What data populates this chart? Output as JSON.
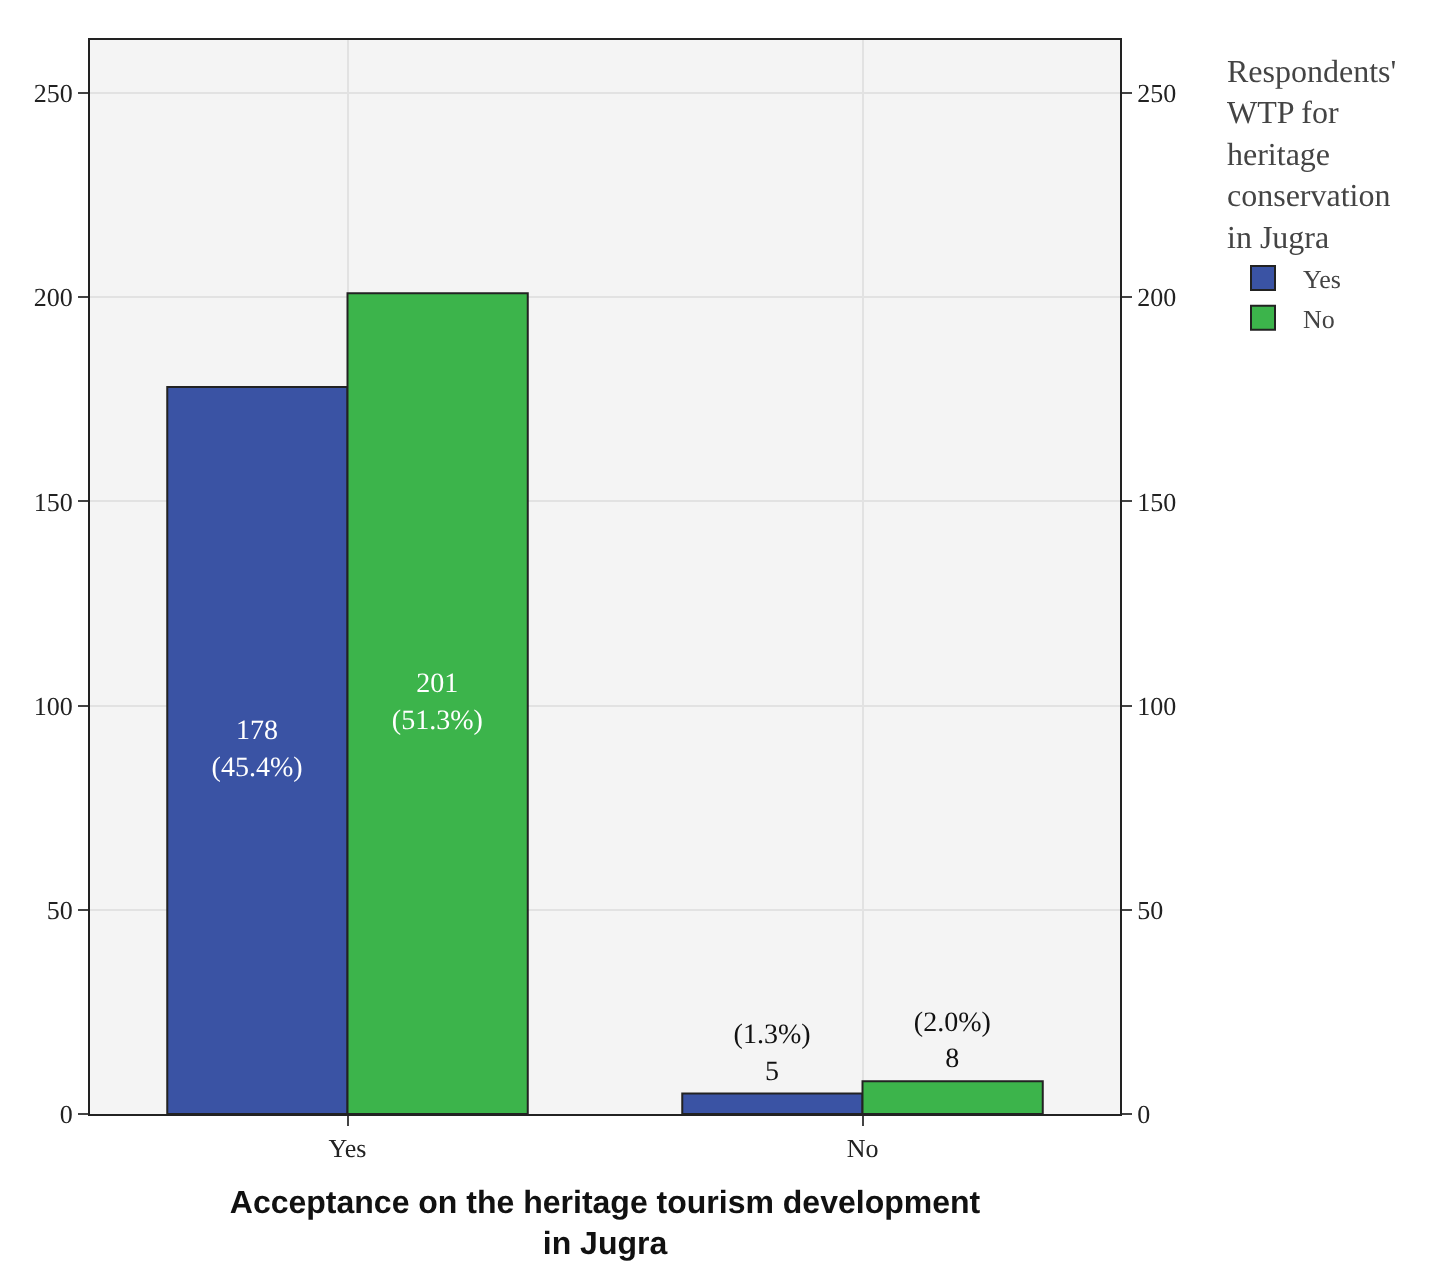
{
  "chart_data": {
    "type": "bar",
    "xlabel": "Acceptance on the heritage tourism development in Jugra",
    "legend_title": "Respondents' WTP for heritage conservation in Jugra",
    "categories": [
      "Yes",
      "No"
    ],
    "series": [
      {
        "name": "Yes",
        "color": "#3a53a4",
        "values": [
          178,
          5
        ],
        "value_labels": [
          "178\n(45.4%)",
          "(1.3%)\n5"
        ]
      },
      {
        "name": "No",
        "color": "#3cb44b",
        "values": [
          201,
          8
        ],
        "value_labels": [
          "201\n(51.3%)",
          "(2.0%)\n8"
        ]
      }
    ],
    "ylim": [
      0,
      263
    ],
    "yticks": [
      0,
      50,
      100,
      150,
      200,
      250
    ],
    "y2lim": [
      0,
      263
    ],
    "y2ticks": [
      0,
      50,
      100,
      150,
      200,
      250
    ],
    "grid": true,
    "legend": "top right"
  }
}
